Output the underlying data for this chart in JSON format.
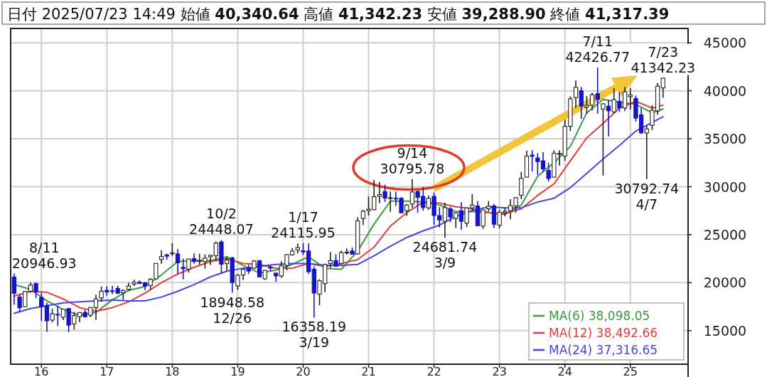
{
  "chart_data": {
    "type": "candlestick",
    "title": "日付 2025/07/23 14:49 始値 **40,340.64** 高値 **41,342.23** 安値 **39,288.90** 終値 **41,317.39**",
    "x": [
      "2015-08",
      "2015-09",
      "2015-10",
      "2015-11",
      "2015-12",
      "2016-01",
      "2016-02",
      "2016-03",
      "2016-04",
      "2016-05",
      "2016-06",
      "2016-07",
      "2016-08",
      "2016-09",
      "2016-10",
      "2016-11",
      "2016-12",
      "2017-01",
      "2017-02",
      "2017-03",
      "2017-04",
      "2017-05",
      "2017-06",
      "2017-07",
      "2017-08",
      "2017-09",
      "2017-10",
      "2017-11",
      "2017-12",
      "2018-01",
      "2018-02",
      "2018-03",
      "2018-04",
      "2018-05",
      "2018-06",
      "2018-07",
      "2018-08",
      "2018-09",
      "2018-10",
      "2018-11",
      "2018-12",
      "2019-01",
      "2019-02",
      "2019-03",
      "2019-04",
      "2019-05",
      "2019-06",
      "2019-07",
      "2019-08",
      "2019-09",
      "2019-10",
      "2019-11",
      "2019-12",
      "2020-01",
      "2020-02",
      "2020-03",
      "2020-04",
      "2020-05",
      "2020-06",
      "2020-07",
      "2020-08",
      "2020-09",
      "2020-10",
      "2020-11",
      "2020-12",
      "2021-01",
      "2021-02",
      "2021-03",
      "2021-04",
      "2021-05",
      "2021-06",
      "2021-07",
      "2021-08",
      "2021-09",
      "2021-10",
      "2021-11",
      "2021-12",
      "2022-01",
      "2022-02",
      "2022-03",
      "2022-04",
      "2022-05",
      "2022-06",
      "2022-07",
      "2022-08",
      "2022-09",
      "2022-10",
      "2022-11",
      "2022-12",
      "2023-01",
      "2023-02",
      "2023-03",
      "2023-04",
      "2023-05",
      "2023-06",
      "2023-07",
      "2023-08",
      "2023-09",
      "2023-10",
      "2023-11",
      "2023-12",
      "2024-01",
      "2024-02",
      "2024-03",
      "2024-04",
      "2024-05",
      "2024-06",
      "2024-07",
      "2024-08",
      "2024-09",
      "2024-10",
      "2024-11",
      "2024-12",
      "2025-01",
      "2025-02",
      "2025-03",
      "2025-04",
      "2025-05",
      "2025-06",
      "2025-07"
    ],
    "series": [
      {
        "colors": [
          "#1414c8",
          "#1414c8",
          "#ffffff",
          "#ffffff",
          "#1414c8",
          "#1414c8",
          "#1414c8",
          "#ffffff",
          "#1414c8",
          "#ffffff",
          "#1414c8",
          "#ffffff",
          "#ffffff",
          "#1414c8",
          "#ffffff",
          "#ffffff",
          "#ffffff",
          "#1414c8",
          "#1414c8",
          "#1414c8",
          "#ffffff",
          "#ffffff",
          "#ffffff",
          "#1414c8",
          "#1414c8",
          "#ffffff",
          "#ffffff",
          "#ffffff",
          "#1414c8",
          "#ffffff",
          "#1414c8",
          "#1414c8",
          "#ffffff",
          "#1414c8",
          "#ffffff",
          "#ffffff",
          "#ffffff",
          "#ffffff",
          "#1414c8",
          "#ffffff",
          "#1414c8",
          "#ffffff",
          "#ffffff",
          "#1414c8",
          "#ffffff",
          "#1414c8",
          "#ffffff",
          "#1414c8",
          "#1414c8",
          "#ffffff",
          "#ffffff",
          "#ffffff",
          "#ffffff",
          "#1414c8",
          "#1414c8",
          "#1414c8",
          "#ffffff",
          "#ffffff",
          "#ffffff",
          "#1414c8",
          "#ffffff",
          "#ffffff",
          "#1414c8",
          "#ffffff",
          "#ffffff",
          "#ffffff",
          "#ffffff",
          "#ffffff",
          "#1414c8",
          "#ffffff",
          "#1414c8",
          "#1414c8",
          "#ffffff",
          "#ffffff",
          "#1414c8",
          "#1414c8",
          "#ffffff",
          "#1414c8",
          "#1414c8",
          "#ffffff",
          "#1414c8",
          "#ffffff",
          "#1414c8",
          "#ffffff",
          "#ffffff",
          "#1414c8",
          "#ffffff",
          "#ffffff",
          "#1414c8",
          "#ffffff",
          "#ffffff",
          "#ffffff",
          "#ffffff",
          "#ffffff",
          "#ffffff",
          "#1414c8",
          "#1414c8",
          "#1414c8",
          "#1414c8",
          "#ffffff",
          "#ffffff",
          "#ffffff",
          "#ffffff",
          "#ffffff",
          "#1414c8",
          "#ffffff",
          "#ffffff",
          "#1414c8",
          "#ffffff",
          "#1414c8",
          "#ffffff",
          "#1414c8",
          "#ffffff",
          "#ffffff",
          "#1414c8",
          "#1414c8",
          "#ffffff",
          "#ffffff",
          "#ffffff",
          "#ffffff"
        ],
        "ohlc": [
          [
            20585,
            20946.93,
            17714,
            18890
          ],
          [
            18500,
            18800,
            16901,
            17388
          ],
          [
            17500,
            19115,
            17485,
            19083
          ],
          [
            19100,
            20012,
            18950,
            19747
          ],
          [
            19900,
            20012,
            18410,
            19033
          ],
          [
            18450,
            18951,
            16017,
            17518
          ],
          [
            17600,
            17905,
            14865,
            16026
          ],
          [
            16100,
            17291,
            15857,
            16758
          ],
          [
            16700,
            17613,
            15471,
            16666
          ],
          [
            16400,
            17251,
            16101,
            17234
          ],
          [
            17300,
            17339,
            14864,
            15575
          ],
          [
            15700,
            16938,
            15106,
            16569
          ],
          [
            16450,
            16919,
            15873,
            16887
          ],
          [
            16900,
            17156,
            16359,
            16449
          ],
          [
            16600,
            17425,
            16403,
            17425
          ],
          [
            17400,
            18746,
            16111,
            18308
          ],
          [
            18400,
            19592,
            18000,
            19114
          ],
          [
            19200,
            19615,
            18650,
            19041
          ],
          [
            19150,
            19668,
            18805,
            19119
          ],
          [
            19400,
            19668,
            18800,
            18909
          ],
          [
            18950,
            19289,
            18224,
            19196
          ],
          [
            19300,
            19998,
            19162,
            19651
          ],
          [
            19850,
            20318,
            19639,
            20033
          ],
          [
            20050,
            20223,
            19867,
            19925
          ],
          [
            19980,
            20080,
            19239,
            19646
          ],
          [
            19700,
            20481,
            19280,
            20356
          ],
          [
            20400,
            22011,
            20363,
            22011
          ],
          [
            22420,
            23382,
            21973,
            22725
          ],
          [
            22900,
            23000,
            22403,
            22764
          ],
          [
            23073,
            24129,
            22787,
            23098
          ],
          [
            23000,
            23486,
            20950,
            22068
          ],
          [
            21600,
            22502,
            20347,
            21454
          ],
          [
            21400,
            22468,
            21056,
            22468
          ],
          [
            22500,
            23050,
            22000,
            22202
          ],
          [
            22200,
            23011,
            21850,
            22305
          ],
          [
            22200,
            22949,
            21462,
            22554
          ],
          [
            22700,
            22869,
            21851,
            22865
          ],
          [
            22800,
            24306,
            22307,
            24120
          ],
          [
            24245,
            24448.07,
            20971,
            21920
          ],
          [
            22000,
            22698,
            21243,
            22351
          ],
          [
            22574,
            22698,
            18948.58,
            20014
          ],
          [
            19655,
            20892,
            19241,
            20773
          ],
          [
            20800,
            21556,
            20289,
            21385
          ],
          [
            21500,
            21860,
            20911,
            21206
          ],
          [
            21500,
            22362,
            21400,
            22259
          ],
          [
            22300,
            22308,
            20550,
            20601
          ],
          [
            20400,
            21316,
            20289,
            21276
          ],
          [
            21600,
            21823,
            21200,
            21522
          ],
          [
            21000,
            21000,
            20110,
            20704
          ],
          [
            20700,
            22255,
            20500,
            21756
          ],
          [
            21800,
            22975,
            21276,
            22927
          ],
          [
            22900,
            23608,
            22800,
            23294
          ],
          [
            23400,
            24092,
            23044,
            23657
          ],
          [
            23319,
            24115.95,
            22892,
            23205
          ],
          [
            23300,
            24083,
            20916,
            21143
          ],
          [
            21400,
            21719,
            16358.19,
            18917
          ],
          [
            18800,
            20365,
            17646,
            20193
          ],
          [
            19900,
            22000,
            19000,
            21878
          ],
          [
            22000,
            23178,
            21530,
            22288
          ],
          [
            22300,
            22964,
            21700,
            21710
          ],
          [
            22000,
            23338,
            21900,
            23140
          ],
          [
            23100,
            23560,
            22900,
            23185
          ],
          [
            23300,
            23672,
            22948,
            22977
          ],
          [
            23000,
            26806,
            22948,
            26433
          ],
          [
            26700,
            27602,
            26000,
            27444
          ],
          [
            27500,
            28979,
            27000,
            27663
          ],
          [
            27600,
            30714,
            27600,
            28966
          ],
          [
            29000,
            30485,
            28300,
            29179
          ],
          [
            29500,
            30208,
            28419,
            28813
          ],
          [
            28800,
            29500,
            27385,
            28860
          ],
          [
            28800,
            29480,
            28000,
            28791
          ],
          [
            28800,
            28900,
            27272,
            27283
          ],
          [
            27500,
            28200,
            26954,
            28089
          ],
          [
            28200,
            30795.78,
            27800,
            29452
          ],
          [
            29500,
            29600,
            27293,
            28892
          ],
          [
            29000,
            29960,
            27500,
            27821
          ],
          [
            27800,
            29100,
            27600,
            28791
          ],
          [
            29000,
            29388,
            26044,
            27001
          ],
          [
            27000,
            27880,
            25770,
            26526
          ],
          [
            26400,
            28338,
            24681.74,
            27821
          ],
          [
            27700,
            27900,
            26300,
            26847
          ],
          [
            26700,
            27300,
            25688,
            27279
          ],
          [
            27500,
            28389,
            25520,
            26393
          ],
          [
            26200,
            27801,
            25800,
            27801
          ],
          [
            27800,
            29222,
            27500,
            28091
          ],
          [
            28000,
            28500,
            25900,
            25937
          ],
          [
            25900,
            27600,
            25600,
            27587
          ],
          [
            27700,
            28500,
            27400,
            27968
          ],
          [
            28000,
            28200,
            25700,
            26094
          ],
          [
            26000,
            27600,
            25661,
            27327
          ],
          [
            27300,
            27800,
            26900,
            27445
          ],
          [
            27500,
            28700,
            26600,
            28041
          ],
          [
            28000,
            28900,
            27300,
            28856
          ],
          [
            29100,
            31560,
            28700,
            30887
          ],
          [
            31000,
            33772,
            31000,
            33189
          ],
          [
            33300,
            33800,
            31600,
            33172
          ],
          [
            33000,
            33500,
            31250,
            32619
          ],
          [
            32700,
            33600,
            31600,
            31857
          ],
          [
            31700,
            32500,
            30538,
            30858
          ],
          [
            31000,
            33800,
            31000,
            33486
          ],
          [
            33400,
            33800,
            32200,
            33464
          ],
          [
            33200,
            36984,
            32700,
            36286
          ],
          [
            36300,
            39426,
            35800,
            39166
          ],
          [
            39300,
            41087,
            38200,
            40369
          ],
          [
            40000,
            40400,
            37068,
            38405
          ],
          [
            38300,
            39437,
            37617,
            38487
          ],
          [
            38500,
            39800,
            37950,
            39583
          ],
          [
            39700,
            42426.77,
            37611,
            39101
          ],
          [
            38100,
            38700,
            31156,
            38647
          ],
          [
            38400,
            39000,
            35247,
            37919
          ],
          [
            37800,
            40257,
            37651,
            39081
          ],
          [
            38900,
            39900,
            37800,
            38208
          ],
          [
            38200,
            40398,
            37900,
            39894
          ],
          [
            39400,
            40288,
            38055,
            39572
          ],
          [
            39200,
            39500,
            36800,
            37155
          ],
          [
            37500,
            38200,
            35500,
            35617
          ],
          [
            35600,
            36400,
            30792.74,
            36045
          ],
          [
            36400,
            38500,
            35900,
            37965
          ],
          [
            37900,
            40800,
            37500,
            40487
          ],
          [
            40300,
            41342.23,
            39288.9,
            41317.39
          ]
        ]
      },
      {
        "type": "line",
        "name": "MA(6) 38,098.05",
        "color": "#3c9a3c",
        "x": [
          "2015-08",
          "2015-11",
          "2016-02",
          "2016-05",
          "2016-08",
          "2016-11",
          "2017-02",
          "2017-05",
          "2017-08",
          "2017-11",
          "2018-02",
          "2018-05",
          "2018-08",
          "2018-11",
          "2019-02",
          "2019-05",
          "2019-08",
          "2019-11",
          "2020-02",
          "2020-05",
          "2020-08",
          "2020-11",
          "2021-02",
          "2021-05",
          "2021-08",
          "2021-11",
          "2022-02",
          "2022-05",
          "2022-08",
          "2022-11",
          "2023-02",
          "2023-05",
          "2023-08",
          "2023-11",
          "2024-02",
          "2024-05",
          "2024-08",
          "2024-11",
          "2025-02",
          "2025-05",
          "2025-07"
        ],
        "values": [
          19800,
          19300,
          18100,
          17200,
          16600,
          16900,
          18200,
          19200,
          19600,
          20800,
          22200,
          22300,
          22300,
          22700,
          21800,
          21000,
          21300,
          21900,
          22700,
          21500,
          21400,
          23300,
          26100,
          28500,
          28500,
          28400,
          28100,
          27400,
          27400,
          27300,
          27100,
          28100,
          31100,
          32500,
          34200,
          37700,
          39100,
          38800,
          38600,
          37700,
          38100
        ]
      },
      {
        "type": "line",
        "name": "MA(12) 38,492.66",
        "color": "#e63c3c",
        "x": [
          "2015-08",
          "2015-11",
          "2016-02",
          "2016-05",
          "2016-08",
          "2016-11",
          "2017-02",
          "2017-05",
          "2017-08",
          "2017-11",
          "2018-02",
          "2018-05",
          "2018-08",
          "2018-11",
          "2019-02",
          "2019-05",
          "2019-08",
          "2019-11",
          "2020-02",
          "2020-05",
          "2020-08",
          "2020-11",
          "2021-02",
          "2021-05",
          "2021-08",
          "2021-11",
          "2022-02",
          "2022-05",
          "2022-08",
          "2022-11",
          "2023-02",
          "2023-05",
          "2023-08",
          "2023-11",
          "2024-02",
          "2024-05",
          "2024-08",
          "2024-11",
          "2025-02",
          "2025-05",
          "2025-07"
        ],
        "values": [
          18600,
          19100,
          19000,
          18300,
          17400,
          17000,
          17400,
          18000,
          18900,
          20000,
          20900,
          21600,
          22200,
          22500,
          22000,
          21900,
          21500,
          21500,
          22000,
          21700,
          22000,
          22400,
          23700,
          25900,
          27300,
          28400,
          28300,
          27900,
          27700,
          27300,
          27200,
          27700,
          29100,
          30300,
          32700,
          35100,
          36600,
          38200,
          38900,
          38200,
          38500
        ]
      },
      {
        "type": "line",
        "name": "MA(24) 37,316.65",
        "color": "#4646e6",
        "x": [
          "2015-08",
          "2015-11",
          "2016-02",
          "2016-05",
          "2016-08",
          "2016-11",
          "2017-02",
          "2017-05",
          "2017-08",
          "2017-11",
          "2018-02",
          "2018-05",
          "2018-08",
          "2018-11",
          "2019-02",
          "2019-05",
          "2019-08",
          "2019-11",
          "2020-02",
          "2020-05",
          "2020-08",
          "2020-11",
          "2021-02",
          "2021-05",
          "2021-08",
          "2021-11",
          "2022-02",
          "2022-05",
          "2022-08",
          "2022-11",
          "2023-02",
          "2023-05",
          "2023-08",
          "2023-11",
          "2024-02",
          "2024-05",
          "2024-08",
          "2024-11",
          "2025-02",
          "2025-05",
          "2025-07"
        ],
        "values": [
          16800,
          17300,
          17600,
          17900,
          18000,
          18100,
          18200,
          18100,
          18100,
          18500,
          19100,
          19800,
          20600,
          21200,
          21500,
          21700,
          21900,
          22000,
          22000,
          21800,
          21800,
          21900,
          22800,
          23800,
          24700,
          25400,
          26000,
          26900,
          27500,
          27900,
          27800,
          27800,
          28400,
          28800,
          29900,
          31400,
          32900,
          34300,
          35800,
          36700,
          37300
        ]
      }
    ],
    "xlim": [
      "2015-07-12",
      "2025-11-19"
    ],
    "xticks": [
      {
        "value": "2016-01",
        "label": "16"
      },
      {
        "value": "2017-01",
        "label": "17"
      },
      {
        "value": "2018-01",
        "label": "18"
      },
      {
        "value": "2019-01",
        "label": "19"
      },
      {
        "value": "2020-01",
        "label": "20"
      },
      {
        "value": "2021-01",
        "label": "21"
      },
      {
        "value": "2022-01",
        "label": "22"
      },
      {
        "value": "2023-01",
        "label": "23"
      },
      {
        "value": "2024-01",
        "label": "24"
      },
      {
        "value": "2025-01",
        "label": "25"
      }
    ],
    "ylim": [
      11500,
      46500
    ],
    "yticks": [
      15000,
      20000,
      25000,
      30000,
      35000,
      40000,
      45000
    ],
    "grid": true,
    "legend": "bottom right",
    "annotations": [
      {
        "text": "8/11\n20946.93",
        "x": "2015-08",
        "y": 20946.93
      },
      {
        "text": "10/2\n24448.07",
        "x": "2018-10",
        "y": 24448.07
      },
      {
        "text": "18948.58\n12/26",
        "x": "2018-12",
        "y": 18948.58
      },
      {
        "text": "1/17\n24115.95",
        "x": "2020-01",
        "y": 24115.95
      },
      {
        "text": "16358.19\n3/19",
        "x": "2020-03",
        "y": 16358.19
      },
      {
        "text": "9/14\n30795.78",
        "x": "2021-09",
        "y": 30795.78
      },
      {
        "text": "24681.74\n3/9",
        "x": "2022-03",
        "y": 24681.74
      },
      {
        "text": "7/11\n42426.77",
        "x": "2024-07",
        "y": 42426.77
      },
      {
        "text": "30792.74\n4/7",
        "x": "2025-04",
        "y": 30792.74
      },
      {
        "text": "7/23\n41342.23",
        "x": "2025-07",
        "y": 41342.23
      }
    ]
  }
}
